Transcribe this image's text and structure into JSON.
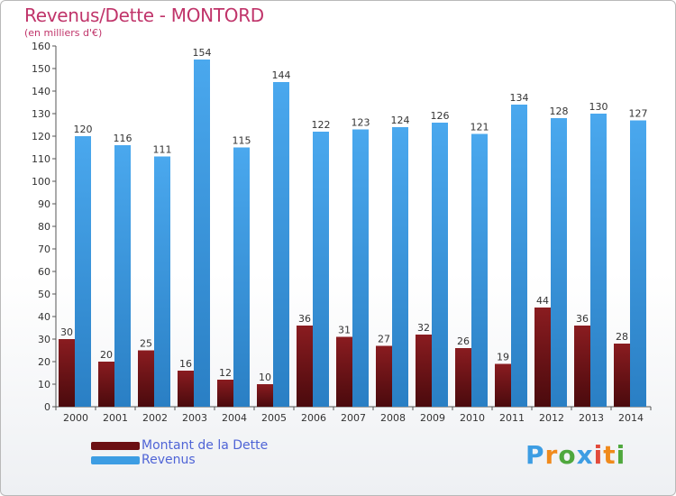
{
  "header": {
    "title": "Revenus/Dette - MONTORD",
    "subtitle": "(en milliers d'€)"
  },
  "legend": {
    "items": [
      {
        "label": "Montant de la Dette",
        "color": "#6b0f13"
      },
      {
        "label": "Revenus",
        "color": "#3d9de3"
      }
    ]
  },
  "logo": {
    "text": "Proxiti"
  },
  "colors": {
    "debt_top": "#8a1c20",
    "debt_bottom": "#4a0a0d",
    "revenue_top": "#4aa8ee",
    "revenue_bottom": "#2a7fc4",
    "axis": "#555555",
    "grid": "#dddddd",
    "title": "#c0346a"
  },
  "chart_data": {
    "type": "bar",
    "categories": [
      "2000",
      "2001",
      "2002",
      "2003",
      "2004",
      "2005",
      "2006",
      "2007",
      "2008",
      "2009",
      "2010",
      "2011",
      "2012",
      "2013",
      "2014"
    ],
    "series": [
      {
        "name": "Montant de la Dette",
        "values": [
          30,
          20,
          25,
          16,
          12,
          10,
          36,
          31,
          27,
          32,
          26,
          19,
          44,
          36,
          28
        ]
      },
      {
        "name": "Revenus",
        "values": [
          120,
          116,
          111,
          154,
          115,
          144,
          122,
          123,
          124,
          126,
          121,
          134,
          128,
          130,
          127
        ]
      }
    ],
    "ylim": [
      0,
      160
    ],
    "yticks": [
      0,
      10,
      20,
      30,
      40,
      50,
      60,
      70,
      80,
      90,
      100,
      110,
      120,
      130,
      140,
      150,
      160
    ],
    "legend_position": "bottom-left"
  }
}
